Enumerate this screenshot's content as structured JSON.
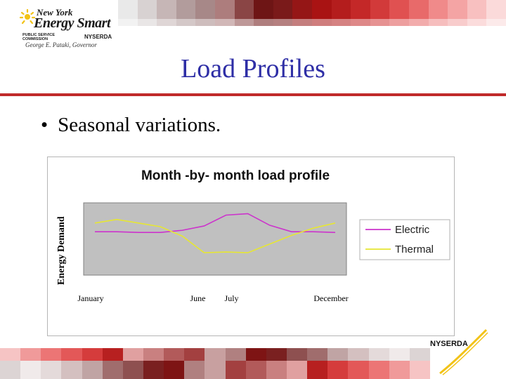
{
  "logo": {
    "line1": "New York",
    "line2": "Energy Smart",
    "psc_line1": "PUBLIC SERVICE",
    "psc_line2": "COMMISSION",
    "nyserda": "NYSERDA",
    "governor": "George E. Pataki, Governor"
  },
  "slide": {
    "title": "Load Profiles",
    "bullet": "Seasonal variations."
  },
  "footer": {
    "nyserda": "NYSERDA"
  },
  "colors": {
    "title": "#2e2ea6",
    "rule": "#c02a2a",
    "electric": "#cc33cc",
    "thermal": "#e6e633",
    "plot_bg": "#c0c0c0"
  },
  "chart_data": {
    "type": "line",
    "title": "Month -by- month load profile",
    "ylabel": "Energy Demand",
    "xlabel": "",
    "x": [
      1,
      2,
      3,
      4,
      5,
      6,
      7,
      8,
      9,
      10,
      11,
      12
    ],
    "x_tick_labels": [
      "January",
      "June",
      "July",
      "December"
    ],
    "x_tick_positions": [
      1,
      6,
      7,
      12
    ],
    "ylim": [
      0,
      100
    ],
    "grid": false,
    "legend": "right",
    "series": [
      {
        "name": "Electric",
        "color": "#cc33cc",
        "values": [
          60,
          60,
          59,
          59,
          62,
          68,
          83,
          85,
          69,
          60,
          60,
          59
        ]
      },
      {
        "name": "Thermal",
        "color": "#e6e633",
        "values": [
          72,
          77,
          72,
          67,
          54,
          31,
          32,
          31,
          43,
          55,
          65,
          72
        ]
      }
    ]
  }
}
